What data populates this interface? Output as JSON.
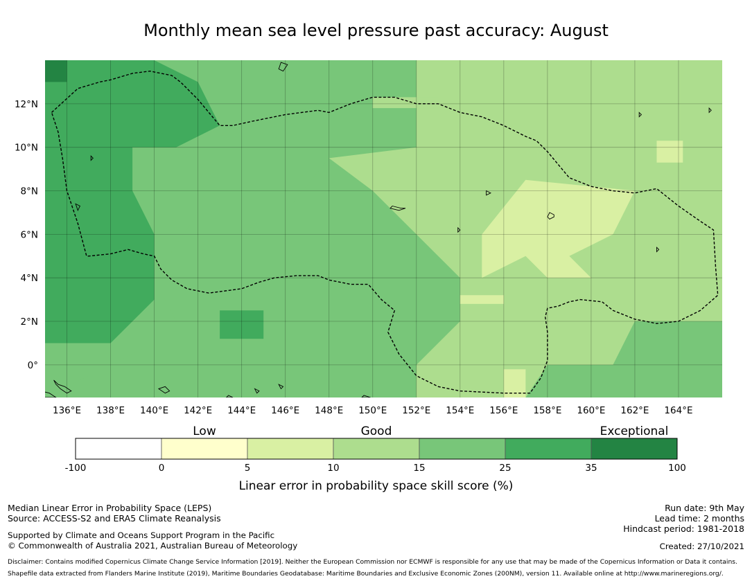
{
  "title": "Monthly mean sea level pressure past accuracy: August",
  "map": {
    "lon_range": [
      135.0,
      166.0
    ],
    "lat_range": [
      -1.5,
      14.0
    ],
    "x_ticks": [
      {
        "lon": 136,
        "label": "136°E"
      },
      {
        "lon": 138,
        "label": "138°E"
      },
      {
        "lon": 140,
        "label": "140°E"
      },
      {
        "lon": 142,
        "label": "142°E"
      },
      {
        "lon": 144,
        "label": "144°E"
      },
      {
        "lon": 146,
        "label": "146°E"
      },
      {
        "lon": 148,
        "label": "148°E"
      },
      {
        "lon": 150,
        "label": "150°E"
      },
      {
        "lon": 152,
        "label": "152°E"
      },
      {
        "lon": 154,
        "label": "154°E"
      },
      {
        "lon": 156,
        "label": "156°E"
      },
      {
        "lon": 158,
        "label": "158°E"
      },
      {
        "lon": 160,
        "label": "160°E"
      },
      {
        "lon": 162,
        "label": "162°E"
      },
      {
        "lon": 164,
        "label": "164°E"
      }
    ],
    "y_ticks": [
      {
        "lat": 12,
        "label": "12°N"
      },
      {
        "lat": 10,
        "label": "10°N"
      },
      {
        "lat": 8,
        "label": "8°N"
      },
      {
        "lat": 6,
        "label": "6°N"
      },
      {
        "lat": 4,
        "label": "4°N"
      },
      {
        "lat": 2,
        "label": "2°N"
      },
      {
        "lat": 0,
        "label": "0°"
      }
    ],
    "skill_zones": [
      {
        "category": 4,
        "points": [
          [
            135,
            14
          ],
          [
            154,
            14
          ],
          [
            154,
            10
          ],
          [
            148,
            9.5
          ],
          [
            146,
            7
          ],
          [
            142,
            7
          ],
          [
            140,
            4
          ],
          [
            141,
            2
          ],
          [
            140,
            1
          ],
          [
            138,
            0
          ],
          [
            135,
            -1.5
          ]
        ]
      },
      {
        "category": 5,
        "points": [
          [
            135,
            14
          ],
          [
            140,
            14
          ],
          [
            142,
            13
          ],
          [
            143,
            11
          ],
          [
            141,
            10
          ],
          [
            139,
            10
          ],
          [
            139,
            8
          ],
          [
            140,
            6
          ],
          [
            140,
            3
          ],
          [
            138,
            1
          ],
          [
            135,
            1
          ]
        ]
      },
      {
        "category": 6,
        "points": [
          [
            135,
            14
          ],
          [
            136,
            14
          ],
          [
            136,
            13
          ],
          [
            135,
            13
          ]
        ]
      },
      {
        "category": 5,
        "points": [
          [
            143,
            2.5
          ],
          [
            145,
            2.5
          ],
          [
            145,
            1.2
          ],
          [
            143,
            1.2
          ]
        ]
      },
      {
        "category": 3,
        "points": [
          [
            152,
            14
          ],
          [
            166,
            14
          ],
          [
            166,
            2
          ],
          [
            162,
            2
          ],
          [
            161,
            0
          ],
          [
            158,
            0
          ],
          [
            157,
            -1.5
          ],
          [
            152,
            -1.5
          ],
          [
            152,
            0
          ],
          [
            154,
            2
          ],
          [
            154,
            4
          ],
          [
            152,
            6
          ],
          [
            150,
            8
          ],
          [
            148,
            9.5
          ],
          [
            152,
            10
          ]
        ]
      },
      {
        "category": 2,
        "points": [
          [
            157,
            8.5
          ],
          [
            162,
            8
          ],
          [
            161,
            6
          ],
          [
            159,
            5
          ],
          [
            160,
            4
          ],
          [
            158,
            4
          ],
          [
            157,
            5
          ],
          [
            155,
            4
          ],
          [
            155,
            6
          ]
        ]
      },
      {
        "category": 3,
        "points": [
          [
            150,
            12.3
          ],
          [
            153,
            12.3
          ],
          [
            153,
            11.8
          ],
          [
            150,
            11.8
          ]
        ]
      },
      {
        "category": 2,
        "points": [
          [
            154,
            3.2
          ],
          [
            156,
            3.2
          ],
          [
            156,
            2.8
          ],
          [
            154,
            2.8
          ]
        ]
      },
      {
        "category": 2,
        "points": [
          [
            163,
            10.3
          ],
          [
            164.2,
            10.3
          ],
          [
            164.2,
            9.3
          ],
          [
            163,
            9.3
          ]
        ]
      },
      {
        "category": 2,
        "points": [
          [
            156,
            -0.2
          ],
          [
            157,
            -0.2
          ],
          [
            157,
            -1.5
          ],
          [
            156,
            -1.5
          ]
        ]
      }
    ],
    "boundaries": [
      {
        "points": [
          [
            135.3,
            11.6
          ],
          [
            136.5,
            12.7
          ],
          [
            137.5,
            13.0
          ],
          [
            138.0,
            13.1
          ],
          [
            139.0,
            13.4
          ],
          [
            139.8,
            13.5
          ],
          [
            140.8,
            13.3
          ],
          [
            141.2,
            13.0
          ],
          [
            142.0,
            12.2
          ],
          [
            143.0,
            11.0
          ],
          [
            143.6,
            11.0
          ],
          [
            144.5,
            11.2
          ],
          [
            146.0,
            11.5
          ],
          [
            147.5,
            11.7
          ],
          [
            148.0,
            11.6
          ],
          [
            149.0,
            12.0
          ],
          [
            150.0,
            12.3
          ],
          [
            151.0,
            12.3
          ],
          [
            152.0,
            12.0
          ],
          [
            153.0,
            12.0
          ],
          [
            154.0,
            11.6
          ],
          [
            155.0,
            11.4
          ],
          [
            156.0,
            11.0
          ],
          [
            157.0,
            10.5
          ],
          [
            157.5,
            10.3
          ],
          [
            158.0,
            9.8
          ],
          [
            159.0,
            8.6
          ],
          [
            160.0,
            8.2
          ],
          [
            161.0,
            8.0
          ],
          [
            162.0,
            7.9
          ],
          [
            163.0,
            8.1
          ],
          [
            164.0,
            7.3
          ],
          [
            165.0,
            6.6
          ],
          [
            165.6,
            6.2
          ],
          [
            165.7,
            4.5
          ],
          [
            165.8,
            3.2
          ],
          [
            165.0,
            2.5
          ],
          [
            164.0,
            2.0
          ],
          [
            163.0,
            1.9
          ],
          [
            162.0,
            2.1
          ],
          [
            161.0,
            2.5
          ],
          [
            160.5,
            2.9
          ],
          [
            159.5,
            3.0
          ],
          [
            159.0,
            2.9
          ],
          [
            158.5,
            2.7
          ],
          [
            158.0,
            2.6
          ],
          [
            157.9,
            2.2
          ],
          [
            158.0,
            1.5
          ],
          [
            158.0,
            0.2
          ],
          [
            157.7,
            -0.6
          ],
          [
            157.2,
            -1.3
          ],
          [
            156.0,
            -1.3
          ],
          [
            154.0,
            -1.2
          ],
          [
            153.0,
            -1.0
          ],
          [
            152.0,
            -0.5
          ],
          [
            151.2,
            0.5
          ],
          [
            150.7,
            1.5
          ],
          [
            151.0,
            2.5
          ],
          [
            150.4,
            3.0
          ],
          [
            149.8,
            3.7
          ],
          [
            149.0,
            3.7
          ],
          [
            148.0,
            3.9
          ],
          [
            147.5,
            4.1
          ],
          [
            146.5,
            4.1
          ],
          [
            145.5,
            4.0
          ],
          [
            144.8,
            3.8
          ],
          [
            144.0,
            3.5
          ],
          [
            142.5,
            3.3
          ],
          [
            141.5,
            3.5
          ],
          [
            140.8,
            3.9
          ],
          [
            140.3,
            4.4
          ],
          [
            140.0,
            5.0
          ],
          [
            139.5,
            5.1
          ],
          [
            138.8,
            5.3
          ],
          [
            138.0,
            5.1
          ],
          [
            137.0,
            5.0
          ],
          [
            136.9,
            5.0
          ],
          [
            136.5,
            6.5
          ],
          [
            136.0,
            8.0
          ],
          [
            135.8,
            9.5
          ],
          [
            135.6,
            10.7
          ],
          [
            135.3,
            11.6
          ]
        ]
      }
    ],
    "coastlines": [
      [
        [
          135.4,
          -0.7
        ],
        [
          135.6,
          -0.9
        ],
        [
          135.9,
          -1.0
        ],
        [
          136.2,
          -1.2
        ],
        [
          136.0,
          -1.3
        ],
        [
          135.7,
          -1.1
        ],
        [
          135.5,
          -0.9
        ]
      ],
      [
        [
          134.8,
          -1.2
        ],
        [
          135.2,
          -1.3
        ],
        [
          135.5,
          -1.5
        ],
        [
          135.0,
          -1.5
        ]
      ],
      [
        [
          140.2,
          -1.1
        ],
        [
          140.5,
          -1.3
        ],
        [
          140.7,
          -1.2
        ],
        [
          140.5,
          -1.0
        ]
      ],
      [
        [
          143.4,
          -1.4
        ],
        [
          143.6,
          -1.5
        ],
        [
          143.3,
          -1.5
        ]
      ],
      [
        [
          144.6,
          -1.1
        ],
        [
          144.8,
          -1.2
        ],
        [
          144.7,
          -1.3
        ]
      ],
      [
        [
          145.7,
          -0.9
        ],
        [
          145.9,
          -1.0
        ],
        [
          145.8,
          -1.1
        ]
      ],
      [
        [
          149.6,
          -1.4
        ],
        [
          149.9,
          -1.5
        ],
        [
          149.5,
          -1.5
        ]
      ],
      [
        [
          145.8,
          13.9
        ],
        [
          146.1,
          13.8
        ],
        [
          145.9,
          13.5
        ],
        [
          145.7,
          13.6
        ]
      ],
      [
        [
          137.1,
          9.6
        ],
        [
          137.2,
          9.5
        ],
        [
          137.1,
          9.4
        ]
      ],
      [
        [
          136.4,
          7.4
        ],
        [
          136.6,
          7.3
        ],
        [
          136.5,
          7.1
        ]
      ],
      [
        [
          150.9,
          7.3
        ],
        [
          151.3,
          7.2
        ],
        [
          151.5,
          7.2
        ],
        [
          151.2,
          7.1
        ],
        [
          150.8,
          7.2
        ]
      ],
      [
        [
          155.2,
          8.0
        ],
        [
          155.4,
          7.9
        ],
        [
          155.2,
          7.8
        ]
      ],
      [
        [
          158.1,
          7.0
        ],
        [
          158.3,
          6.9
        ],
        [
          158.3,
          6.8
        ],
        [
          158.1,
          6.7
        ],
        [
          158.0,
          6.8
        ]
      ],
      [
        [
          163.0,
          5.4
        ],
        [
          163.1,
          5.3
        ],
        [
          163.0,
          5.2
        ]
      ],
      [
        [
          153.9,
          6.3
        ],
        [
          154.0,
          6.2
        ],
        [
          153.9,
          6.1
        ]
      ],
      [
        [
          162.2,
          11.6
        ],
        [
          162.3,
          11.5
        ],
        [
          162.2,
          11.4
        ]
      ],
      [
        [
          165.4,
          11.8
        ],
        [
          165.5,
          11.7
        ],
        [
          165.4,
          11.6
        ]
      ]
    ]
  },
  "colorbar": {
    "colors": [
      "#ffffff",
      "#ffffcc",
      "#d9f0a3",
      "#addd8e",
      "#78c679",
      "#41ab5d",
      "#238443"
    ],
    "labels": [
      "-100",
      "0",
      "5",
      "10",
      "15",
      "25",
      "35",
      "100"
    ],
    "categories": [
      {
        "label": "Low",
        "at": 1
      },
      {
        "label": "Good",
        "at": 3
      },
      {
        "label": "Exceptional",
        "at": 6
      }
    ],
    "title": "Linear error in probability space skill score (%)"
  },
  "footer": {
    "left_lines": [
      "Median Linear Error in Probability Space (LEPS)",
      "Source: ACCESS-S2 and ERA5 Climate Reanalysis"
    ],
    "support_lines": [
      "Supported by Climate and Oceans Support Program in the Pacific",
      "© Commonwealth of Australia 2021, Australian Bureau of Meteorology"
    ],
    "right_lines": [
      "Run date: 9th May",
      "Lead time: 2 months",
      "Hindcast period: 1981-2018"
    ],
    "created": "Created: 27/10/2021",
    "disclaimer_lines": [
      "Disclaimer: Contains modified Copernicus Climate Change Service Information [2019]. Neither the European Commission nor ECMWF is responsible for any use that may be made of the Copernicus Information or Data it contains.",
      "Shapefile data extracted from Flanders Marine Institute (2019), Maritime Boundaries Geodatabase: Maritime Boundaries and Exclusive Economic Zones (200NM), version 11. Available online at http://www.marineregions.org/."
    ]
  }
}
